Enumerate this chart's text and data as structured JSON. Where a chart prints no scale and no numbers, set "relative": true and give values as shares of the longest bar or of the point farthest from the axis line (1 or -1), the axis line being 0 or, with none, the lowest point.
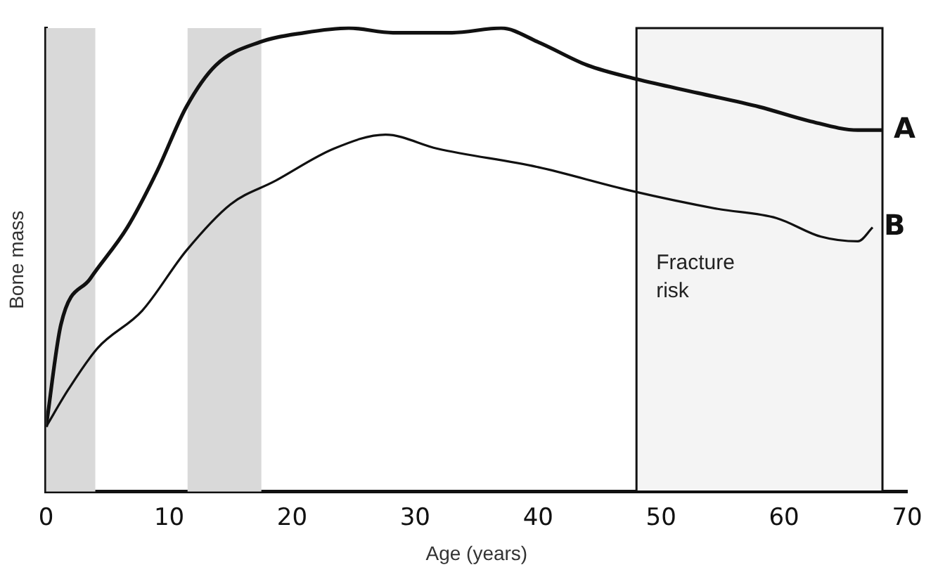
{
  "chart_data": {
    "type": "line",
    "relative": true,
    "xlabel": "Age (years)",
    "ylabel": "Bone mass",
    "xlim": [
      0,
      70
    ],
    "xticks": [
      0,
      10,
      20,
      30,
      40,
      50,
      60,
      70
    ],
    "legend": false,
    "grid": false,
    "marker": "none",
    "line_style": "solid",
    "series": [
      {
        "name": "A",
        "color": "#111111",
        "x": [
          0,
          1.2,
          3.6,
          6.6,
          9,
          11.4,
          13.8,
          17.4,
          21,
          24.6,
          28.2,
          33,
          37,
          40,
          44,
          48,
          53,
          58,
          62,
          66,
          68
        ],
        "values": [
          0.14,
          0.36,
          0.46,
          0.57,
          0.69,
          0.83,
          0.92,
          0.97,
          0.99,
          1.0,
          0.99,
          0.99,
          1.0,
          0.97,
          0.92,
          0.89,
          0.86,
          0.83,
          0.8,
          0.78,
          0.78
        ]
      },
      {
        "name": "B",
        "color": "#111111",
        "x": [
          0,
          1.8,
          4.2,
          7.8,
          11.4,
          15,
          18.6,
          23.4,
          27.6,
          31.8,
          40,
          47.4,
          54.6,
          59.4,
          63,
          66,
          67.2
        ],
        "values": [
          0.14,
          0.22,
          0.31,
          0.39,
          0.52,
          0.62,
          0.67,
          0.74,
          0.77,
          0.74,
          0.7,
          0.65,
          0.61,
          0.59,
          0.55,
          0.54,
          0.57
        ]
      }
    ],
    "bands": [
      {
        "axis": "x",
        "from": 0,
        "to": 4,
        "color": "#d9d9d9"
      },
      {
        "axis": "x",
        "from": 11.5,
        "to": 17.5,
        "color": "#d9d9d9"
      },
      {
        "axis": "x",
        "from": 48,
        "to": 68,
        "label": "Fracture risk",
        "color": "#f4f4f4"
      }
    ]
  }
}
